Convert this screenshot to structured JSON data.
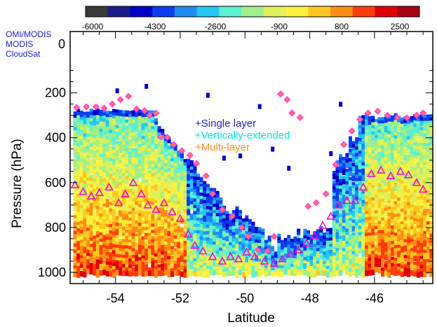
{
  "chart_data": {
    "type": "heatmap",
    "xlabel": "Latitude",
    "ylabel": "Pressure (hPa)",
    "xlim": [
      -55.4,
      -44.2
    ],
    "ylim": [
      1050,
      120
    ],
    "x_ticks": [
      -54,
      -52,
      -50,
      -48,
      -46
    ],
    "y_ticks": [
      200,
      400,
      600,
      800,
      1000
    ],
    "colorbar": {
      "ticks": [
        -6000,
        -4300,
        -2600,
        -900,
        800,
        2500
      ],
      "colors": [
        "#3a3a3a",
        "#1d1d8e",
        "#0000c8",
        "#0a3cf0",
        "#1f8cf5",
        "#22c7f5",
        "#5cf0d2",
        "#9ff08a",
        "#e0f05a",
        "#fff23c",
        "#ffc81e",
        "#ff8c14",
        "#ff3c0a",
        "#e0000a",
        "#aa0014"
      ]
    },
    "top_strips": [
      {
        "name": "OMI/MODIS",
        "color": "#2222dd"
      },
      {
        "name": "MODIS",
        "color": "#2222dd"
      },
      {
        "name": "CloudSat",
        "color": "#2222dd"
      }
    ],
    "strip_pressure_label": "0",
    "legend": {
      "placement": "center",
      "items": [
        {
          "label": "+Single layer",
          "color": "#1e1ed2"
        },
        {
          "label": "+Vertically-extended",
          "color": "#00e8e8"
        },
        {
          "label": "+Multi-layer",
          "color": "#ff8c1e"
        }
      ]
    },
    "cloud_top_markers": {
      "color": "#ff33ff",
      "points": [
        [
          -55.2,
          265
        ],
        [
          -54.9,
          262
        ],
        [
          -54.6,
          262
        ],
        [
          -54.35,
          268
        ],
        [
          -54.1,
          250
        ],
        [
          -53.85,
          230
        ],
        [
          -53.6,
          215
        ],
        [
          -53.35,
          272
        ],
        [
          -53.1,
          280
        ],
        [
          -52.95,
          300
        ],
        [
          -52.75,
          290
        ],
        [
          -52.6,
          395
        ],
        [
          -52.4,
          398
        ],
        [
          -52.2,
          430
        ],
        [
          -51.95,
          458
        ],
        [
          -51.7,
          478
        ],
        [
          -51.5,
          515
        ],
        [
          -51.2,
          570
        ],
        [
          -51.0,
          650
        ],
        [
          -50.7,
          720
        ],
        [
          -50.4,
          750
        ],
        [
          -50.1,
          800
        ],
        [
          -49.9,
          840
        ],
        [
          -49.6,
          900
        ],
        [
          -49.3,
          905
        ],
        [
          -49.1,
          840
        ],
        [
          -48.9,
          205
        ],
        [
          -48.7,
          230
        ],
        [
          -48.55,
          290
        ],
        [
          -48.3,
          310
        ],
        [
          -48.05,
          705
        ],
        [
          -47.8,
          690
        ],
        [
          -47.5,
          650
        ],
        [
          -47.2,
          520
        ],
        [
          -46.95,
          430
        ],
        [
          -46.7,
          370
        ],
        [
          -46.45,
          318
        ],
        [
          -46.2,
          290
        ],
        [
          -45.9,
          282
        ],
        [
          -45.6,
          300
        ],
        [
          -45.3,
          310
        ],
        [
          -45.0,
          312
        ],
        [
          -44.7,
          300
        ],
        [
          -44.5,
          290
        ]
      ]
    },
    "cloud_base_markers": {
      "color": "#ff00cc",
      "points": [
        [
          -55.25,
          610
        ],
        [
          -55.0,
          640
        ],
        [
          -54.75,
          660
        ],
        [
          -54.5,
          645
        ],
        [
          -54.2,
          620
        ],
        [
          -53.9,
          690
        ],
        [
          -53.7,
          650
        ],
        [
          -53.45,
          600
        ],
        [
          -53.2,
          650
        ],
        [
          -53.0,
          700
        ],
        [
          -52.75,
          720
        ],
        [
          -52.5,
          690
        ],
        [
          -52.25,
          730
        ],
        [
          -52.0,
          760
        ],
        [
          -51.75,
          830
        ],
        [
          -51.55,
          880
        ],
        [
          -51.3,
          905
        ],
        [
          -51.0,
          930
        ],
        [
          -50.7,
          950
        ],
        [
          -50.45,
          930
        ],
        [
          -50.2,
          940
        ],
        [
          -49.95,
          910
        ],
        [
          -49.7,
          930
        ],
        [
          -49.4,
          950
        ],
        [
          -49.1,
          960
        ],
        [
          -48.85,
          940
        ],
        [
          -48.6,
          920
        ],
        [
          -48.35,
          900
        ],
        [
          -48.1,
          870
        ],
        [
          -47.85,
          835
        ],
        [
          -47.6,
          790
        ],
        [
          -47.35,
          750
        ],
        [
          -47.1,
          700
        ],
        [
          -46.85,
          680
        ],
        [
          -46.6,
          680
        ],
        [
          -46.35,
          620
        ],
        [
          -46.1,
          560
        ],
        [
          -45.8,
          545
        ],
        [
          -45.5,
          570
        ],
        [
          -45.2,
          550
        ],
        [
          -44.95,
          565
        ],
        [
          -44.7,
          600
        ],
        [
          -44.5,
          630
        ]
      ]
    }
  }
}
